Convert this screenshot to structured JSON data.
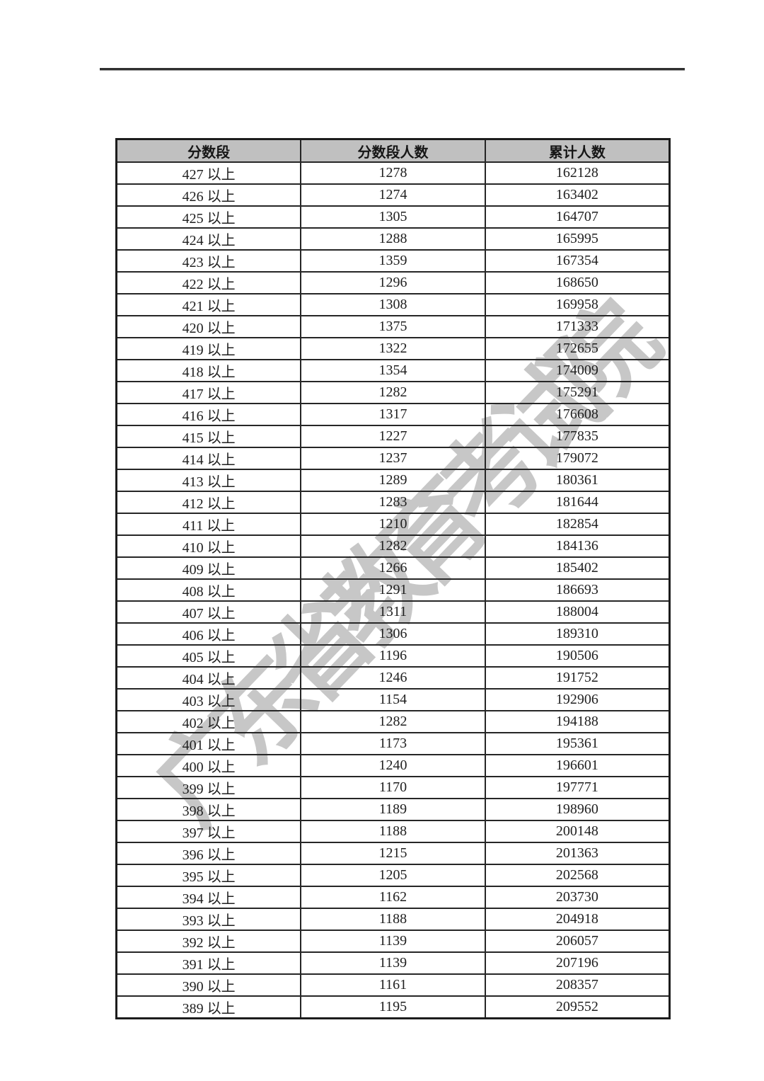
{
  "watermark": {
    "text": "广东省教育考试院",
    "color": "#c7c7c7"
  },
  "divider": {
    "color": "#2f2f2f"
  },
  "table": {
    "header_bg": "#c0c0c0",
    "columns": [
      "分数段",
      "分数段人数",
      "累计人数"
    ],
    "rows": [
      [
        "427 以上",
        "1278",
        "162128"
      ],
      [
        "426 以上",
        "1274",
        "163402"
      ],
      [
        "425 以上",
        "1305",
        "164707"
      ],
      [
        "424 以上",
        "1288",
        "165995"
      ],
      [
        "423 以上",
        "1359",
        "167354"
      ],
      [
        "422 以上",
        "1296",
        "168650"
      ],
      [
        "421 以上",
        "1308",
        "169958"
      ],
      [
        "420 以上",
        "1375",
        "171333"
      ],
      [
        "419 以上",
        "1322",
        "172655"
      ],
      [
        "418 以上",
        "1354",
        "174009"
      ],
      [
        "417 以上",
        "1282",
        "175291"
      ],
      [
        "416 以上",
        "1317",
        "176608"
      ],
      [
        "415 以上",
        "1227",
        "177835"
      ],
      [
        "414 以上",
        "1237",
        "179072"
      ],
      [
        "413 以上",
        "1289",
        "180361"
      ],
      [
        "412 以上",
        "1283",
        "181644"
      ],
      [
        "411 以上",
        "1210",
        "182854"
      ],
      [
        "410 以上",
        "1282",
        "184136"
      ],
      [
        "409 以上",
        "1266",
        "185402"
      ],
      [
        "408 以上",
        "1291",
        "186693"
      ],
      [
        "407 以上",
        "1311",
        "188004"
      ],
      [
        "406 以上",
        "1306",
        "189310"
      ],
      [
        "405 以上",
        "1196",
        "190506"
      ],
      [
        "404 以上",
        "1246",
        "191752"
      ],
      [
        "403 以上",
        "1154",
        "192906"
      ],
      [
        "402 以上",
        "1282",
        "194188"
      ],
      [
        "401 以上",
        "1173",
        "195361"
      ],
      [
        "400 以上",
        "1240",
        "196601"
      ],
      [
        "399 以上",
        "1170",
        "197771"
      ],
      [
        "398 以上",
        "1189",
        "198960"
      ],
      [
        "397 以上",
        "1188",
        "200148"
      ],
      [
        "396 以上",
        "1215",
        "201363"
      ],
      [
        "395 以上",
        "1205",
        "202568"
      ],
      [
        "394 以上",
        "1162",
        "203730"
      ],
      [
        "393 以上",
        "1188",
        "204918"
      ],
      [
        "392 以上",
        "1139",
        "206057"
      ],
      [
        "391 以上",
        "1139",
        "207196"
      ],
      [
        "390 以上",
        "1161",
        "208357"
      ],
      [
        "389 以上",
        "1195",
        "209552"
      ]
    ]
  }
}
